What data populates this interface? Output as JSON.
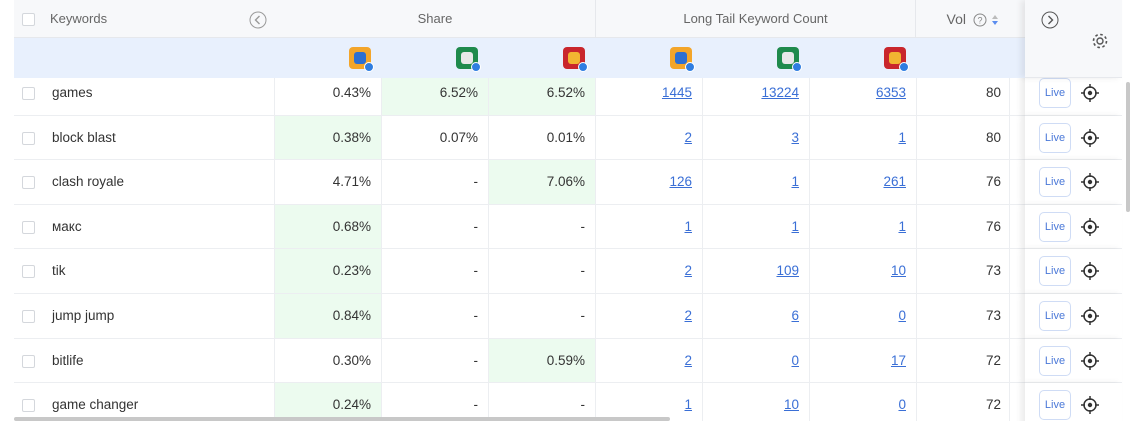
{
  "header": {
    "keywords": "Keywords",
    "share": "Share",
    "long_tail": "Long Tail Keyword Count",
    "vol": "Vol"
  },
  "row_action": "Live",
  "rows": [
    {
      "keyword": "games",
      "share": [
        "0.43%",
        "6.52%",
        "6.52%"
      ],
      "long_tail": [
        1445,
        13224,
        6353
      ],
      "vol": 80
    },
    {
      "keyword": "block blast",
      "share": [
        "0.38%",
        "0.07%",
        "0.01%"
      ],
      "long_tail": [
        2,
        3,
        1
      ],
      "vol": 80
    },
    {
      "keyword": "clash royale",
      "share": [
        "4.71%",
        "-",
        "7.06%"
      ],
      "long_tail": [
        126,
        1,
        261
      ],
      "vol": 76
    },
    {
      "keyword": "макс",
      "share": [
        "0.68%",
        "-",
        "-"
      ],
      "long_tail": [
        1,
        1,
        1
      ],
      "vol": 76
    },
    {
      "keyword": "tik",
      "share": [
        "0.23%",
        "-",
        "-"
      ],
      "long_tail": [
        2,
        109,
        10
      ],
      "vol": 73
    },
    {
      "keyword": "jump jump",
      "share": [
        "0.84%",
        "-",
        "-"
      ],
      "long_tail": [
        2,
        6,
        0
      ],
      "vol": 73
    },
    {
      "keyword": "bitlife",
      "share": [
        "0.30%",
        "-",
        "0.59%"
      ],
      "long_tail": [
        2,
        0,
        17
      ],
      "vol": 72
    },
    {
      "keyword": "game changer",
      "share": [
        "0.24%",
        "-",
        "-"
      ],
      "long_tail": [
        1,
        10,
        0
      ],
      "vol": 72
    }
  ]
}
